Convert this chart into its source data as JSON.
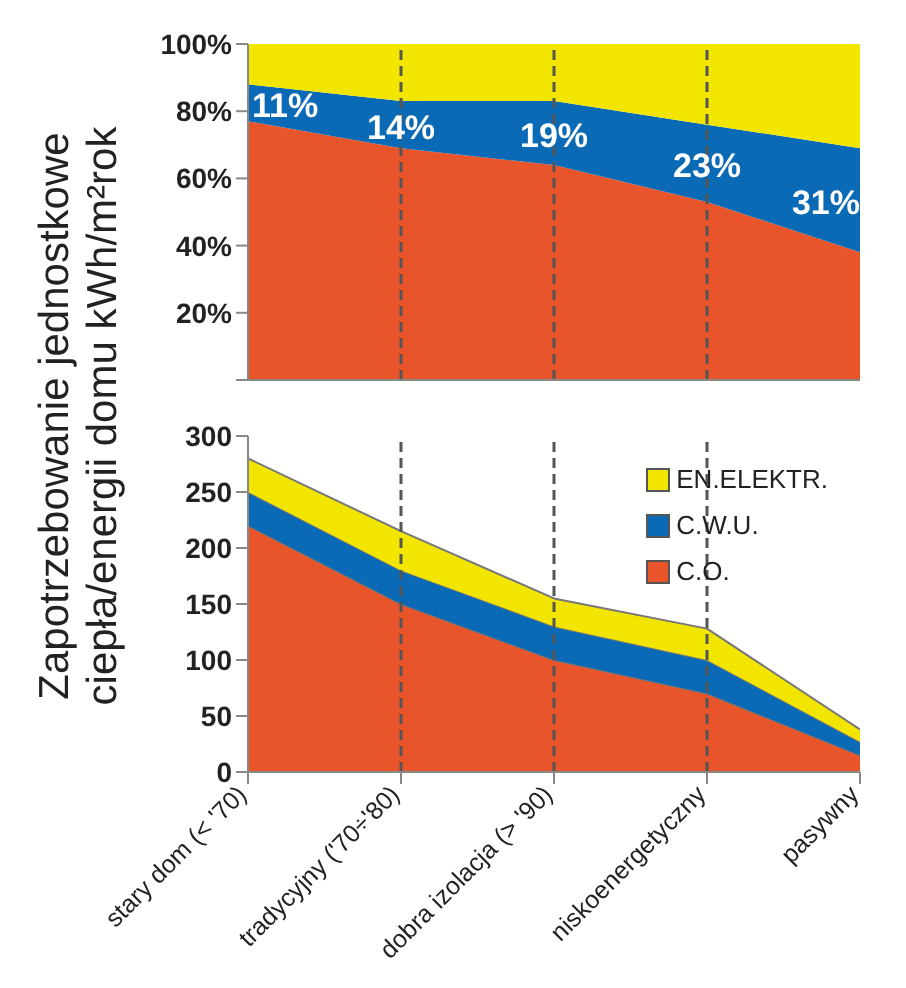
{
  "chart_data": [
    {
      "type": "area",
      "stacked": true,
      "ylabel": "Zapotrzebowanie jednostkowe ciepła/energii domu kWh/m²rok",
      "categories": [
        "stary dom (< '70)",
        "tradycyjny ('70÷'80)",
        "dobra izolacja (> '90)",
        "niskoenergetyczny",
        "pasywny"
      ],
      "tick_labels": "y",
      "ylim": [
        0,
        100
      ],
      "yticks": [
        {
          "value": 0,
          "label": null
        },
        {
          "value": 20,
          "label": "20%"
        },
        {
          "value": 40,
          "label": "40%"
        },
        {
          "value": 60,
          "label": "60%"
        },
        {
          "value": 80,
          "label": "80%"
        },
        {
          "value": 100,
          "label": "100%"
        }
      ],
      "legend": false,
      "series": [
        {
          "color": "#e8552a",
          "values": [
            77,
            69,
            64,
            53,
            38
          ]
        },
        {
          "color": "#0a6ab5",
          "values": [
            11,
            14,
            19,
            23,
            31
          ],
          "value_labels": [
            "11%",
            "14%",
            "19%",
            "23%",
            "31%"
          ]
        },
        {
          "color": "#f2e600",
          "values": [
            12,
            17,
            17,
            24,
            31
          ]
        }
      ],
      "ref_lines": [
        {
          "axis": "x",
          "value": "tradycyjny ('70÷'80)",
          "color": "#555555",
          "line_style": "dashed"
        },
        {
          "axis": "x",
          "value": "dobra izolacja (> '90)",
          "color": "#555555",
          "line_style": "dashed"
        },
        {
          "axis": "x",
          "value": "niskoenergetyczny",
          "color": "#555555",
          "line_style": "dashed"
        }
      ]
    },
    {
      "type": "area",
      "stacked": true,
      "categories": [
        "stary dom (< '70)",
        "tradycyjny ('70÷'80)",
        "dobra izolacja (> '90)",
        "niskoenergetyczny",
        "pasywny"
      ],
      "ylim": [
        0,
        300
      ],
      "yticks": [
        0,
        50,
        100,
        150,
        200,
        250,
        300
      ],
      "legend": "top right",
      "series": [
        {
          "name": "C.O.",
          "color": "#e8552a",
          "values": [
            220,
            150,
            100,
            70,
            15
          ]
        },
        {
          "name": "C.W.U.",
          "color": "#0a6ab5",
          "values": [
            30,
            30,
            30,
            30,
            12
          ]
        },
        {
          "name": "EN.ELEKTR.",
          "color": "#f2e600",
          "values": [
            30,
            35,
            25,
            28,
            11
          ]
        }
      ],
      "ref_lines": [
        {
          "axis": "x",
          "value": "tradycyjny ('70÷'80)",
          "color": "#555555",
          "line_style": "dashed"
        },
        {
          "axis": "x",
          "value": "dobra izolacja (> '90)",
          "color": "#555555",
          "line_style": "dashed"
        },
        {
          "axis": "x",
          "value": "niskoenergetyczny",
          "color": "#555555",
          "line_style": "dashed"
        }
      ]
    }
  ]
}
